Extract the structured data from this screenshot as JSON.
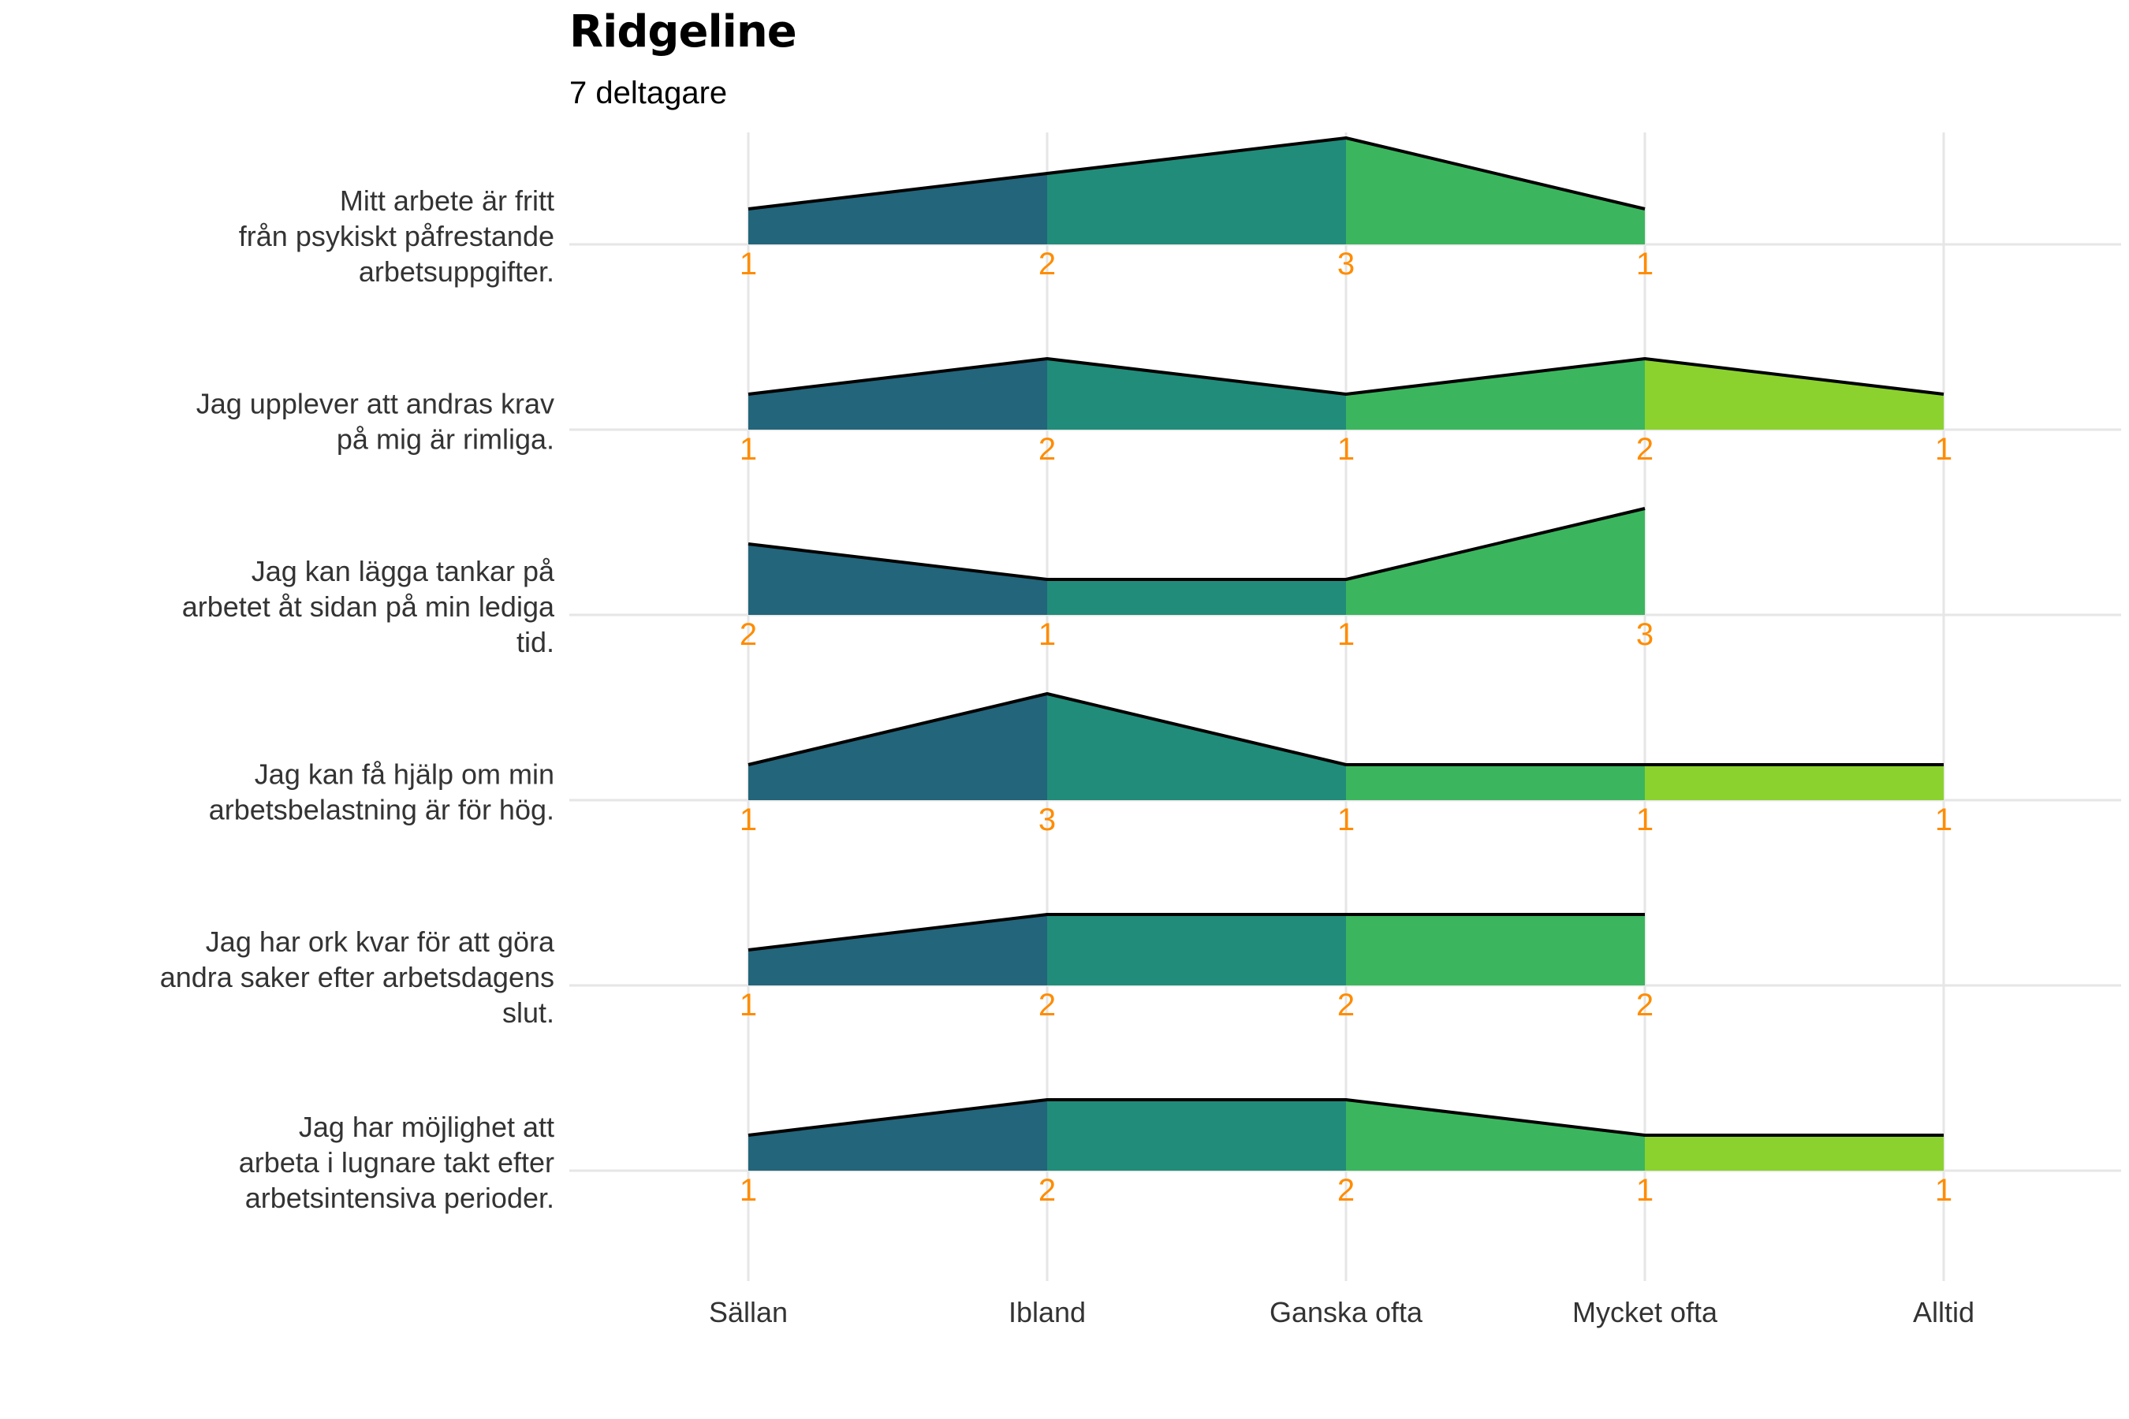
{
  "title": "Ridgeline",
  "subtitle": "7 deltagare",
  "chart_data": {
    "type": "ridgeline",
    "categories": [
      "Sällan",
      "Ibland",
      "Ganska ofta",
      "Mycket ofta",
      "Alltid"
    ],
    "category_colors": [
      "#23657A",
      "#218C7A",
      "#3BB65E",
      "#8BD22F"
    ],
    "outline_color": "#000000",
    "count_label_color": "#FF8C00",
    "grid": true,
    "rows": [
      {
        "label": [
          "Mitt arbete är fritt",
          "från psykiskt påfrestande",
          "arbetsuppgifter."
        ],
        "values": [
          1,
          2,
          3,
          1,
          null
        ]
      },
      {
        "label": [
          "Jag upplever att andras krav",
          "på mig är rimliga."
        ],
        "values": [
          1,
          2,
          1,
          2,
          1
        ]
      },
      {
        "label": [
          "Jag kan lägga tankar på",
          "arbetet åt sidan på min lediga",
          "tid."
        ],
        "values": [
          2,
          1,
          1,
          3,
          null
        ]
      },
      {
        "label": [
          "Jag kan få hjälp om min",
          "arbetsbelastning är för hög."
        ],
        "values": [
          1,
          3,
          1,
          1,
          1
        ]
      },
      {
        "label": [
          "Jag har ork kvar för att göra",
          "andra saker efter arbetsdagens",
          "slut."
        ],
        "values": [
          1,
          2,
          2,
          2,
          null
        ]
      },
      {
        "label": [
          "Jag har möjlighet att",
          "arbeta i lugnare takt efter",
          "arbetsintensiva perioder."
        ],
        "values": [
          1,
          2,
          2,
          1,
          1
        ]
      }
    ]
  }
}
